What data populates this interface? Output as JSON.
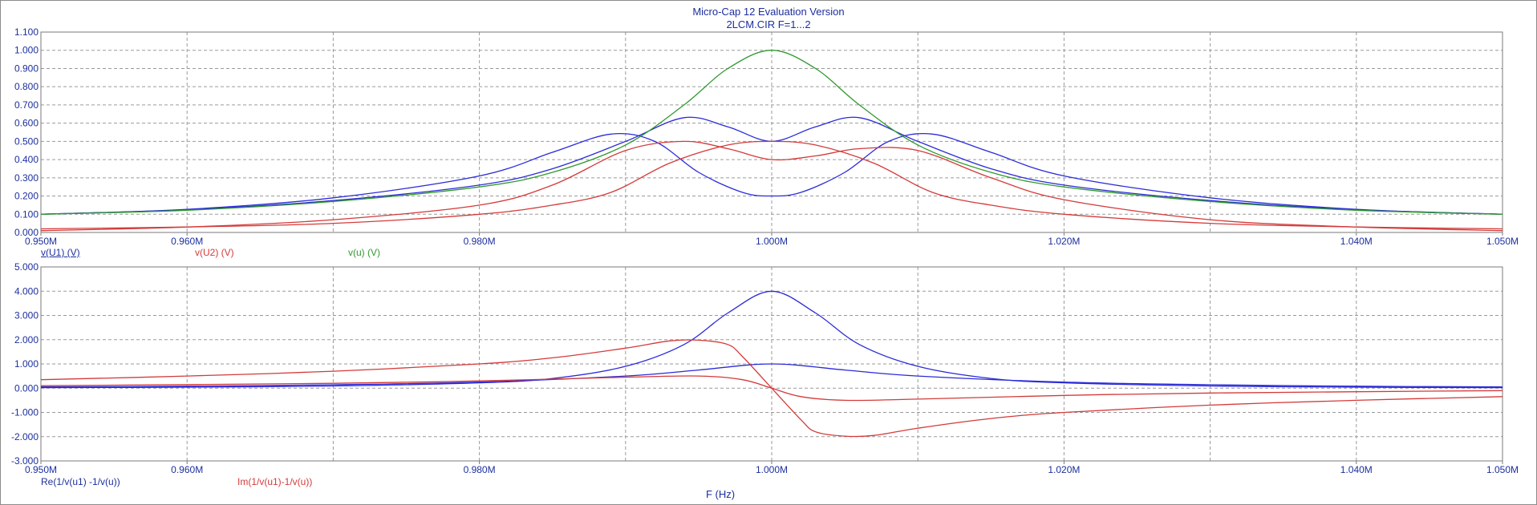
{
  "window": {
    "title": "Micro-Cap 12 Evaluation Version",
    "subtitle": "2LCM.CIR F=1...2"
  },
  "chart_data": [
    {
      "type": "line",
      "xlabel": "F (Hz)",
      "xlim": [
        0.95,
        1.05
      ],
      "x_tick_values": [
        0.95,
        0.96,
        0.98,
        1.0,
        1.02,
        1.04,
        1.05
      ],
      "x_tick_labels": [
        "0.950M",
        "0.960M",
        "0.980M",
        "1.000M",
        "1.020M",
        "1.040M",
        "1.050M"
      ],
      "ylim": [
        0,
        1.1
      ],
      "y_tick_values": [
        0,
        0.1,
        0.2,
        0.3,
        0.4,
        0.5,
        0.6,
        0.7,
        0.8,
        0.9,
        1.0,
        1.1
      ],
      "y_tick_labels": [
        "0.000",
        "0.100",
        "0.200",
        "0.300",
        "0.400",
        "0.500",
        "0.600",
        "0.700",
        "0.800",
        "0.900",
        "1.000",
        "1.100"
      ],
      "grid": true,
      "legend": [
        "v(U1) (V)",
        "v(U2) (V)",
        "v(u) (V)"
      ],
      "series": [
        {
          "name": "v(U1) (V)",
          "color": "#2b2bd8",
          "x": [
            0.95,
            0.96,
            0.97,
            0.98,
            0.985,
            0.989,
            0.992,
            0.995,
            0.998,
            1.0,
            1.002,
            1.005,
            1.008,
            1.011,
            1.015,
            1.02,
            1.03,
            1.04,
            1.05
          ],
          "y": [
            0.1,
            0.127,
            0.19,
            0.31,
            0.44,
            0.54,
            0.5,
            0.33,
            0.22,
            0.2,
            0.22,
            0.33,
            0.5,
            0.54,
            0.44,
            0.31,
            0.19,
            0.127,
            0.1
          ]
        },
        {
          "name": "v(U1) (V)",
          "color": "#2b2bd8",
          "x": [
            0.95,
            0.96,
            0.97,
            0.98,
            0.985,
            0.99,
            0.994,
            0.997,
            1.0,
            1.003,
            1.006,
            1.01,
            1.015,
            1.02,
            1.03,
            1.04,
            1.05
          ],
          "y": [
            0.1,
            0.125,
            0.175,
            0.26,
            0.35,
            0.5,
            0.63,
            0.58,
            0.5,
            0.58,
            0.63,
            0.5,
            0.35,
            0.26,
            0.175,
            0.125,
            0.1
          ]
        },
        {
          "name": "v(U2) (V)",
          "color": "#d43a3a",
          "x": [
            0.95,
            0.96,
            0.97,
            0.98,
            0.985,
            0.99,
            0.994,
            0.997,
            1.0,
            1.003,
            1.006,
            1.01,
            1.015,
            1.02,
            1.03,
            1.04,
            1.05
          ],
          "y": [
            0.01,
            0.03,
            0.07,
            0.15,
            0.26,
            0.45,
            0.5,
            0.46,
            0.4,
            0.42,
            0.46,
            0.45,
            0.3,
            0.18,
            0.07,
            0.03,
            0.01
          ]
        },
        {
          "name": "v(U2) (V)",
          "color": "#d43a3a",
          "x": [
            0.95,
            0.96,
            0.97,
            0.98,
            0.985,
            0.989,
            0.993,
            0.997,
            1.0,
            1.003,
            1.007,
            1.011,
            1.015,
            1.02,
            1.03,
            1.04,
            1.05
          ],
          "y": [
            0.02,
            0.03,
            0.05,
            0.1,
            0.15,
            0.22,
            0.38,
            0.48,
            0.5,
            0.48,
            0.38,
            0.22,
            0.15,
            0.1,
            0.05,
            0.03,
            0.02
          ]
        },
        {
          "name": "v(u) (V)",
          "color": "#2f9a2f",
          "x": [
            0.95,
            0.96,
            0.97,
            0.98,
            0.985,
            0.99,
            0.994,
            0.997,
            1.0,
            1.003,
            1.006,
            1.01,
            1.015,
            1.02,
            1.03,
            1.04,
            1.05
          ],
          "y": [
            0.1,
            0.122,
            0.17,
            0.25,
            0.33,
            0.48,
            0.7,
            0.9,
            1.0,
            0.9,
            0.7,
            0.48,
            0.33,
            0.25,
            0.17,
            0.122,
            0.1
          ]
        }
      ]
    },
    {
      "type": "line",
      "xlabel": "F (Hz)",
      "xlim": [
        0.95,
        1.05
      ],
      "x_tick_values": [
        0.95,
        0.96,
        0.98,
        1.0,
        1.02,
        1.04,
        1.05
      ],
      "x_tick_labels": [
        "0.950M",
        "0.960M",
        "0.980M",
        "1.000M",
        "1.020M",
        "1.040M",
        "1.050M"
      ],
      "ylim": [
        -3,
        5
      ],
      "y_tick_values": [
        -3,
        -2,
        -1,
        0,
        1,
        2,
        3,
        4,
        5
      ],
      "y_tick_labels": [
        "-3.000",
        "-2.000",
        "-1.000",
        "0.000",
        "1.000",
        "2.000",
        "3.000",
        "4.000",
        "5.000"
      ],
      "grid": true,
      "legend": [
        "Re(1/v(u1) -1/v(u))",
        "Im(1/v(u1)-1/v(u))"
      ],
      "series": [
        {
          "name": "Re(1/v(u1) -1/v(u))",
          "color": "#2b2bd8",
          "x": [
            0.95,
            0.96,
            0.97,
            0.98,
            0.985,
            0.99,
            0.994,
            0.997,
            1.0,
            1.003,
            1.006,
            1.01,
            1.015,
            1.02,
            1.03,
            1.04,
            1.05
          ],
          "y": [
            0.02,
            0.04,
            0.09,
            0.22,
            0.4,
            0.9,
            1.8,
            3.1,
            4.0,
            3.1,
            1.8,
            0.9,
            0.4,
            0.22,
            0.09,
            0.04,
            0.02
          ]
        },
        {
          "name": "Re(1/v(u1) -1/v(u))",
          "color": "#2b2bd8",
          "x": [
            0.95,
            0.96,
            0.97,
            0.98,
            0.99,
            0.995,
            1.0,
            1.005,
            1.01,
            1.02,
            1.03,
            1.04,
            1.05
          ],
          "y": [
            0.05,
            0.08,
            0.14,
            0.25,
            0.5,
            0.75,
            1.0,
            0.75,
            0.5,
            0.25,
            0.14,
            0.08,
            0.05
          ]
        },
        {
          "name": "Im(1/v(u1)-1/v(u))",
          "color": "#d43a3a",
          "x": [
            0.95,
            0.96,
            0.97,
            0.98,
            0.985,
            0.99,
            0.993,
            0.995,
            0.997,
            0.998,
            1.0,
            1.002,
            1.003,
            1.005,
            1.007,
            1.01,
            1.015,
            1.02,
            1.03,
            1.04,
            1.05
          ],
          "y": [
            0.35,
            0.5,
            0.7,
            1.0,
            1.25,
            1.65,
            1.95,
            1.98,
            1.8,
            1.3,
            0.0,
            -1.3,
            -1.8,
            -1.98,
            -1.95,
            -1.65,
            -1.25,
            -1.0,
            -0.7,
            -0.5,
            -0.35
          ]
        },
        {
          "name": "Im(1/v(u1)-1/v(u))",
          "color": "#d43a3a",
          "x": [
            0.95,
            0.97,
            0.98,
            0.99,
            0.995,
            0.998,
            1.0,
            1.002,
            1.005,
            1.01,
            1.02,
            1.03,
            1.05
          ],
          "y": [
            0.1,
            0.2,
            0.3,
            0.45,
            0.5,
            0.35,
            0.0,
            -0.35,
            -0.5,
            -0.45,
            -0.3,
            -0.2,
            -0.1
          ]
        }
      ]
    }
  ]
}
